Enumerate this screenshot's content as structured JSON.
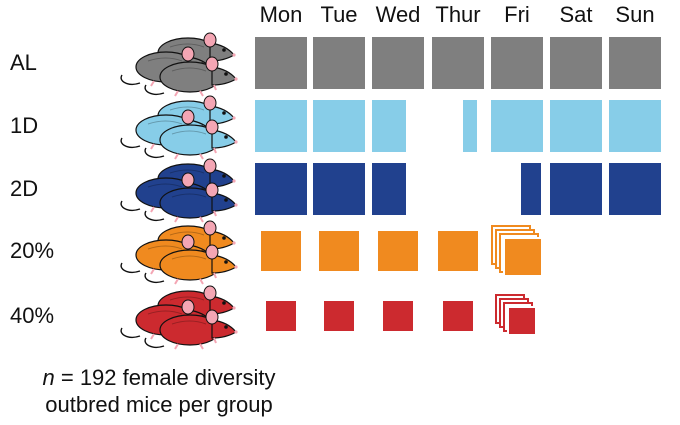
{
  "days": [
    "Mon",
    "Tue",
    "Wed",
    "Thur",
    "Fri",
    "Sat",
    "Sun"
  ],
  "colors": {
    "AL": "#7f7f7f",
    "1D": "#87cde8",
    "2D": "#21418e",
    "20%": "#f08a1f",
    "40%": "#cc2a2f"
  },
  "groups": [
    {
      "label": "AL",
      "color": "#7f7f7f",
      "schedule": [
        "full",
        "full",
        "full",
        "full",
        "full",
        "full",
        "full"
      ]
    },
    {
      "label": "1D",
      "color": "#87cde8",
      "schedule": [
        "full",
        "full",
        "left-partial",
        "none",
        "right-partial",
        "full",
        "full"
      ]
    },
    {
      "label": "2D",
      "color": "#21418e",
      "schedule": [
        "full",
        "full",
        "left-partial",
        "none",
        "right-partial",
        "full",
        "full"
      ]
    },
    {
      "label": "20%",
      "color": "#f08a1f",
      "schedule": [
        "reduced",
        "reduced",
        "reduced",
        "reduced",
        "stacked",
        "none",
        "none"
      ]
    },
    {
      "label": "40%",
      "color": "#cc2a2f",
      "schedule": [
        "reduced",
        "reduced",
        "reduced",
        "reduced",
        "stacked",
        "none",
        "none"
      ]
    }
  ],
  "caption": {
    "n": "n",
    "line1_rest": " = 192 female diversity",
    "line2": "outbred mice per group"
  },
  "icons": {
    "mouse": "mouse-icon",
    "food": "food-block"
  }
}
